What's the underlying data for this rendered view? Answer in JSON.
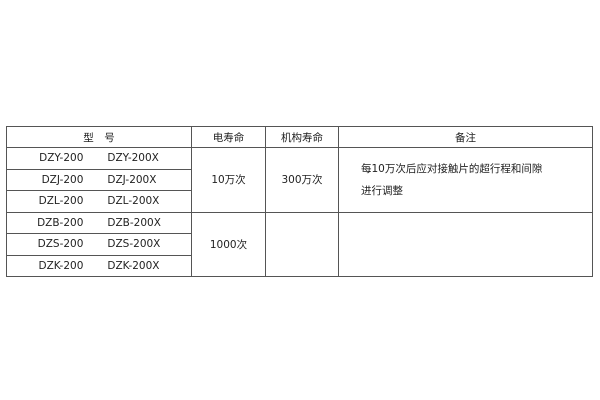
{
  "headers": {
    "model": "型　号",
    "electrical_life": "电寿命",
    "mechanical_life": "机构寿命",
    "remarks": "备注"
  },
  "groups": [
    {
      "models": [
        [
          "DZY-200",
          "DZY-200X"
        ],
        [
          "DZJ-200",
          "DZJ-200X"
        ],
        [
          "DZL-200",
          "DZL-200X"
        ]
      ],
      "electrical_life": "10万次",
      "mechanical_life": "300万次",
      "remarks_line1": "每10万次后应对接触片的超行程和间隙",
      "remarks_line2": "进行调整"
    },
    {
      "models": [
        [
          "DZB-200",
          "DZB-200X"
        ],
        [
          "DZS-200",
          "DZS-200X"
        ],
        [
          "DZK-200",
          "DZK-200X"
        ]
      ],
      "electrical_life": "1000次",
      "mechanical_life": "",
      "remarks_line1": "",
      "remarks_line2": ""
    }
  ]
}
